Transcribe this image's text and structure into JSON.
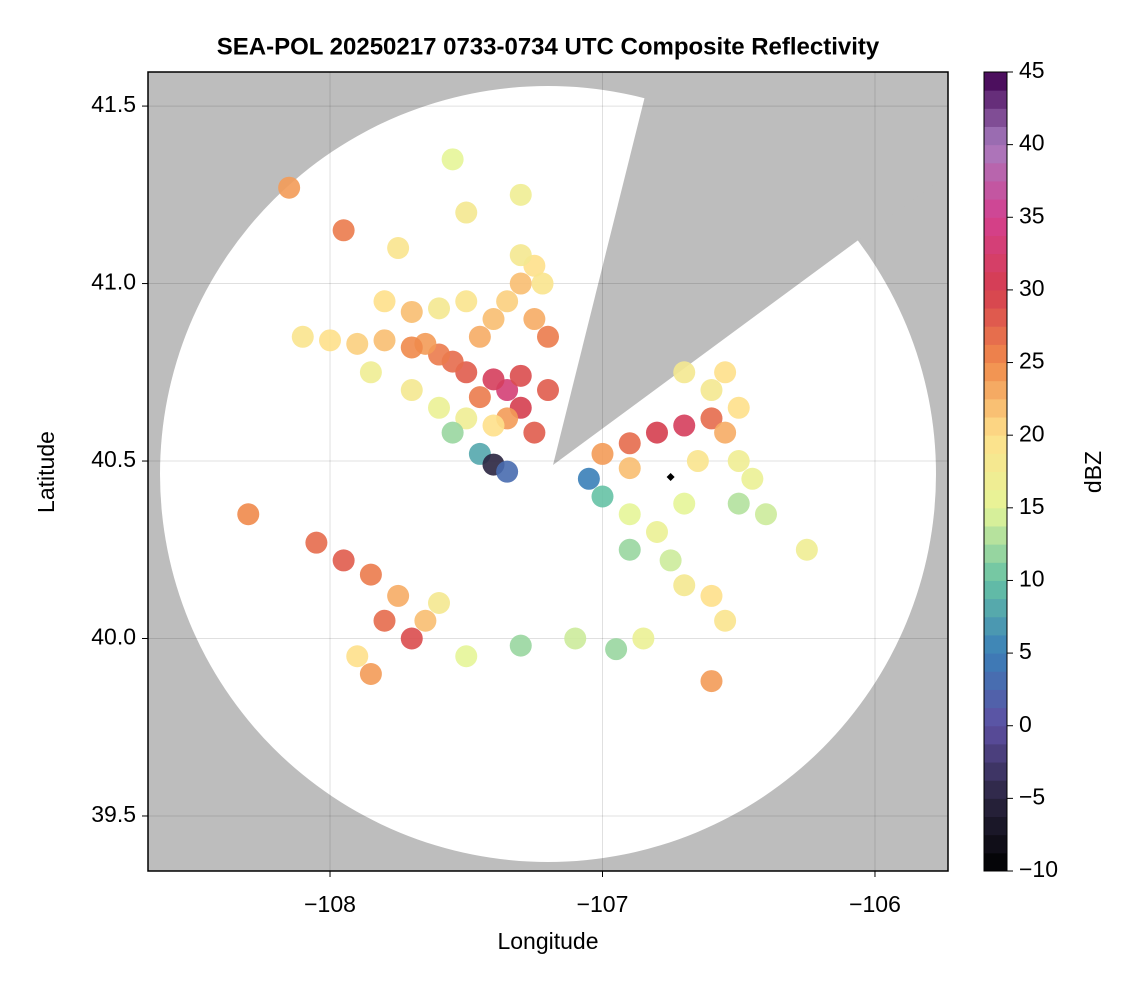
{
  "chart_data": {
    "type": "scatter",
    "title": "SEA-POL 20250217 0733-0734 UTC Composite Reflectivity",
    "xlabel": "Longitude",
    "ylabel": "Latitude",
    "xlim": [
      -108.668,
      -105.732
    ],
    "ylim": [
      39.345,
      41.596
    ],
    "xticks": [
      {
        "value": -108,
        "label": "−108"
      },
      {
        "value": -107,
        "label": "−107"
      },
      {
        "value": -106,
        "label": "−106"
      }
    ],
    "yticks": [
      39.5,
      {
        "value": 40,
        "label": "40.0"
      },
      40.5,
      {
        "value": 41,
        "label": "41.0"
      },
      41.5
    ],
    "grid": true,
    "colorbar_label": "dBZ",
    "clim": [
      -10,
      45
    ],
    "cticks": [
      {
        "value": -10,
        "label": "−10"
      },
      {
        "value": -5,
        "label": "−5"
      },
      0,
      5,
      10,
      15,
      20,
      25,
      30,
      35,
      40,
      45
    ],
    "colormap": [
      "#000000",
      "#2a2540",
      "#5e4fa2",
      "#3a7fb8",
      "#66c2a5",
      "#e6f598",
      "#fee08b",
      "#f08a4b",
      "#d53e4f",
      "#d4408f",
      "#a77bbf",
      "#3f0050"
    ],
    "x": [
      -107.25,
      -107.3,
      -107.35,
      -107.4,
      -107.3,
      -107.45,
      -107.5,
      -107.55,
      -107.6,
      -107.65,
      -107.7,
      -107.8,
      -107.9,
      -108.0,
      -108.1,
      -107.45,
      -107.4,
      -107.35,
      -107.3,
      -107.25,
      -107.5,
      -107.6,
      -107.7,
      -107.8,
      -107.35,
      -107.4,
      -107.5,
      -107.6,
      -107.7,
      -107.85,
      -107.55,
      -107.45,
      -107.4,
      -107.35,
      -107.3,
      -107.2,
      -107.2,
      -107.25,
      -107.22,
      -107.0,
      -106.9,
      -106.8,
      -106.7,
      -106.6,
      -106.55,
      -106.5,
      -106.6,
      -106.65,
      -106.5,
      -106.45,
      -106.9,
      -106.55,
      -107.0,
      -106.9,
      -106.8,
      -106.75,
      -106.7,
      -106.6,
      -106.55,
      -106.9,
      -107.05,
      -106.7,
      -106.5,
      -108.3,
      -108.05,
      -107.95,
      -107.85,
      -107.75,
      -107.8,
      -107.7,
      -107.65,
      -107.9,
      -107.85,
      -107.6,
      -107.5,
      -107.3,
      -107.1,
      -106.95,
      -106.85,
      -106.6,
      -106.25,
      -106.4,
      -107.95,
      -107.75,
      -107.3,
      -107.5,
      -107.55,
      -108.15,
      -106.7
    ],
    "y": [
      40.58,
      40.65,
      40.7,
      40.73,
      40.74,
      40.68,
      40.75,
      40.78,
      40.8,
      40.83,
      40.82,
      40.84,
      40.83,
      40.84,
      40.85,
      40.85,
      40.9,
      40.95,
      41.0,
      41.05,
      40.95,
      40.93,
      40.92,
      40.95,
      40.62,
      40.6,
      40.62,
      40.65,
      40.7,
      40.75,
      40.58,
      40.52,
      40.49,
      40.47,
      41.08,
      40.85,
      40.7,
      40.9,
      41.0,
      40.52,
      40.55,
      40.58,
      40.6,
      40.62,
      40.58,
      40.65,
      40.7,
      40.5,
      40.5,
      40.45,
      40.48,
      40.75,
      40.4,
      40.35,
      40.3,
      40.22,
      40.15,
      40.12,
      40.05,
      40.25,
      40.45,
      40.38,
      40.38,
      40.35,
      40.27,
      40.22,
      40.18,
      40.12,
      40.05,
      40.0,
      40.05,
      39.95,
      39.9,
      40.1,
      39.95,
      39.98,
      40.0,
      39.97,
      40.0,
      39.88,
      40.25,
      40.35,
      41.15,
      41.1,
      41.25,
      41.2,
      41.35,
      41.27,
      40.75
    ],
    "values": [
      28,
      30,
      33,
      31,
      29,
      26,
      28,
      27,
      26,
      24,
      25,
      22,
      21,
      20,
      19,
      23,
      22,
      21,
      22,
      20,
      19,
      18,
      22,
      20,
      24,
      20,
      17,
      16,
      18,
      17,
      12,
      8,
      -5,
      3,
      18,
      26,
      28,
      23,
      19,
      24,
      27,
      30,
      31,
      27,
      23,
      20,
      18,
      19,
      17,
      16,
      22,
      20,
      10,
      15,
      16,
      14,
      18,
      20,
      19,
      12,
      5,
      15,
      13,
      25,
      27,
      28,
      26,
      23,
      27,
      29,
      22,
      20,
      24,
      18,
      15,
      12,
      14,
      12,
      16,
      24,
      17,
      14,
      26,
      19,
      17,
      18,
      15,
      24,
      18
    ],
    "site": {
      "x": -106.75,
      "y": 40.455
    }
  }
}
